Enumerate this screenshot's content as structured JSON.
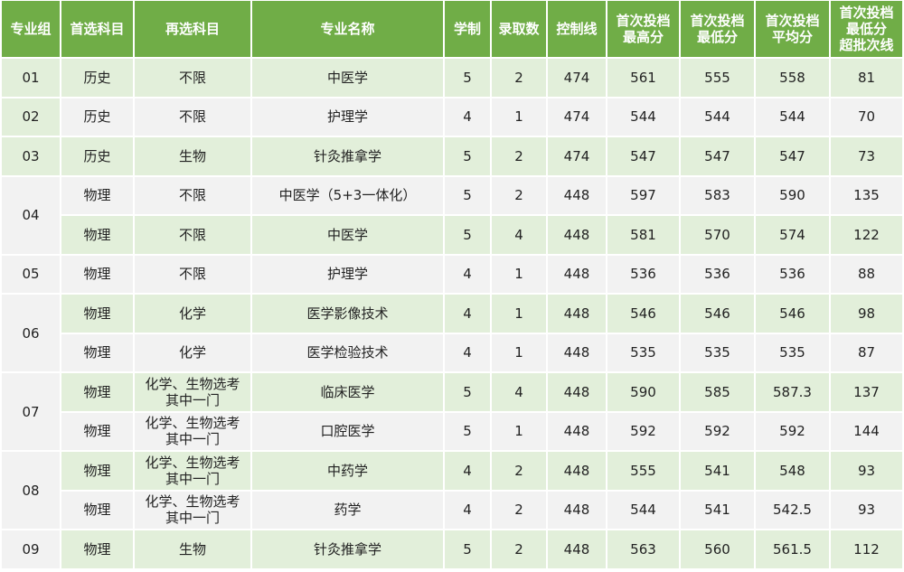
{
  "colors": {
    "header": "#70ad47",
    "row_green": "#e2efda",
    "row_gray": "#f2f2f2"
  },
  "headers": [
    "专业组",
    "首选科目",
    "再选科目",
    "专业名称",
    "学制",
    "录取数",
    "控制线",
    "首次投档\n最高分",
    "首次投档\n最低分",
    "首次投档\n平均分",
    "首次投档\n最低分\n超批次线"
  ],
  "groups": [
    {
      "id": "01",
      "rows": [
        [
          "历史",
          "不限",
          "中医学",
          "5",
          "2",
          "474",
          "561",
          "555",
          "558",
          "81"
        ]
      ]
    },
    {
      "id": "02",
      "rows": [
        [
          "历史",
          "不限",
          "护理学",
          "4",
          "1",
          "474",
          "544",
          "544",
          "544",
          "70"
        ]
      ]
    },
    {
      "id": "03",
      "rows": [
        [
          "历史",
          "生物",
          "针灸推拿学",
          "5",
          "2",
          "474",
          "547",
          "547",
          "547",
          "73"
        ]
      ]
    },
    {
      "id": "04",
      "rows": [
        [
          "物理",
          "不限",
          "中医学（5+3一体化）",
          "5",
          "2",
          "448",
          "597",
          "583",
          "590",
          "135"
        ],
        [
          "物理",
          "不限",
          "中医学",
          "5",
          "4",
          "448",
          "581",
          "570",
          "574",
          "122"
        ]
      ]
    },
    {
      "id": "05",
      "rows": [
        [
          "物理",
          "不限",
          "护理学",
          "4",
          "1",
          "448",
          "536",
          "536",
          "536",
          "88"
        ]
      ]
    },
    {
      "id": "06",
      "rows": [
        [
          "物理",
          "化学",
          "医学影像技术",
          "4",
          "1",
          "448",
          "546",
          "546",
          "546",
          "98"
        ],
        [
          "物理",
          "化学",
          "医学检验技术",
          "4",
          "1",
          "448",
          "535",
          "535",
          "535",
          "87"
        ]
      ]
    },
    {
      "id": "07",
      "rows": [
        [
          "物理",
          "化学、生物选考\n其中一门",
          "临床医学",
          "5",
          "4",
          "448",
          "590",
          "585",
          "587.3",
          "137"
        ],
        [
          "物理",
          "化学、生物选考\n其中一门",
          "口腔医学",
          "5",
          "1",
          "448",
          "592",
          "592",
          "592",
          "144"
        ]
      ]
    },
    {
      "id": "08",
      "rows": [
        [
          "物理",
          "化学、生物选考\n其中一门",
          "中药学",
          "4",
          "2",
          "448",
          "555",
          "541",
          "548",
          "93"
        ],
        [
          "物理",
          "化学、生物选考\n其中一门",
          "药学",
          "4",
          "2",
          "448",
          "544",
          "541",
          "542.5",
          "93"
        ]
      ]
    },
    {
      "id": "09",
      "rows": [
        [
          "物理",
          "生物",
          "针灸推拿学",
          "5",
          "2",
          "448",
          "563",
          "560",
          "561.5",
          "112"
        ]
      ]
    }
  ]
}
